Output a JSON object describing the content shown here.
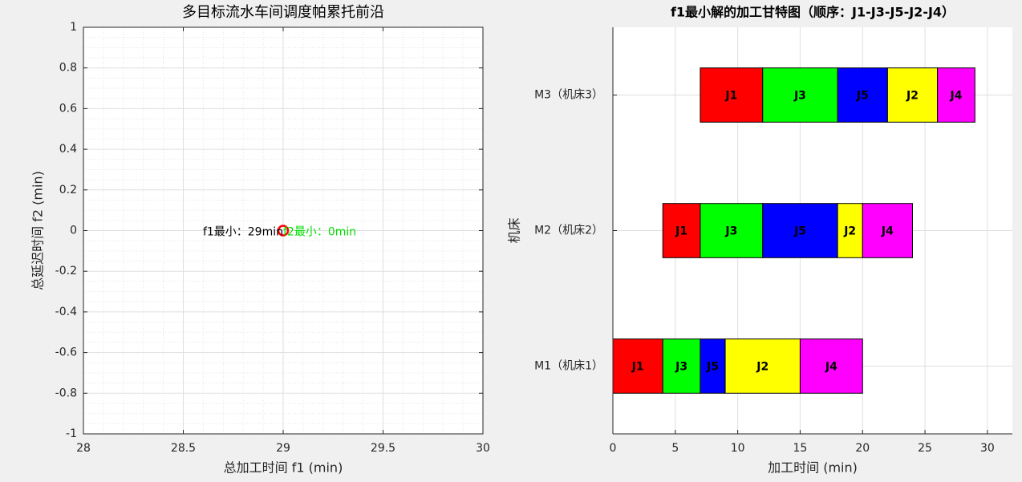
{
  "chart_data": [
    {
      "type": "scatter",
      "title": "多目标流水车间调度帕累托前沿",
      "x_label": "总加工时间 f1 (min)",
      "y_label": "总延迟时间 f2 (min)",
      "x": [
        29
      ],
      "y": [
        0
      ],
      "color": "#ff0000",
      "marker": "circle",
      "xlim": [
        28,
        30
      ],
      "xticks": [
        28,
        28.5,
        29,
        29.5,
        30
      ],
      "ylim": [
        -1,
        1
      ],
      "yticks": [
        -1,
        -0.8,
        -0.6,
        -0.4,
        -0.2,
        0,
        0.2,
        0.4,
        0.6,
        0.8,
        1
      ],
      "grid": true,
      "minor_grid": true,
      "box": true,
      "annotations": [
        {
          "text": "f1最小：29min",
          "color": "#000000"
        },
        {
          "text": "f2最小：0min",
          "color": "#00dd00"
        }
      ]
    },
    {
      "type": "gantt",
      "title": "f1最小解的加工甘特图（顺序：J1-J3-J5-J2-J4）",
      "x_label": "加工时间 (min)",
      "y_label": "机床",
      "categories": [
        "M1（机床1）",
        "M2（机床2）",
        "M3（机床3）"
      ],
      "series": [
        {
          "name": "J1",
          "color": "#ff0000",
          "start": [
            0,
            4,
            7
          ],
          "values": [
            4,
            3,
            5
          ]
        },
        {
          "name": "J3",
          "color": "#00ff00",
          "start": [
            4,
            7,
            12
          ],
          "values": [
            3,
            5,
            6
          ]
        },
        {
          "name": "J5",
          "color": "#0000ff",
          "start": [
            7,
            12,
            18
          ],
          "values": [
            2,
            6,
            4
          ]
        },
        {
          "name": "J2",
          "color": "#ffff00",
          "start": [
            9,
            18,
            22
          ],
          "values": [
            6,
            2,
            4
          ]
        },
        {
          "name": "J4",
          "color": "#ff00ff",
          "start": [
            15,
            20,
            26
          ],
          "values": [
            5,
            4,
            3
          ]
        }
      ],
      "xlim": [
        0,
        32
      ],
      "xticks": [
        0,
        5,
        10,
        15,
        20,
        25,
        30
      ],
      "grid": true,
      "box": false
    }
  ]
}
